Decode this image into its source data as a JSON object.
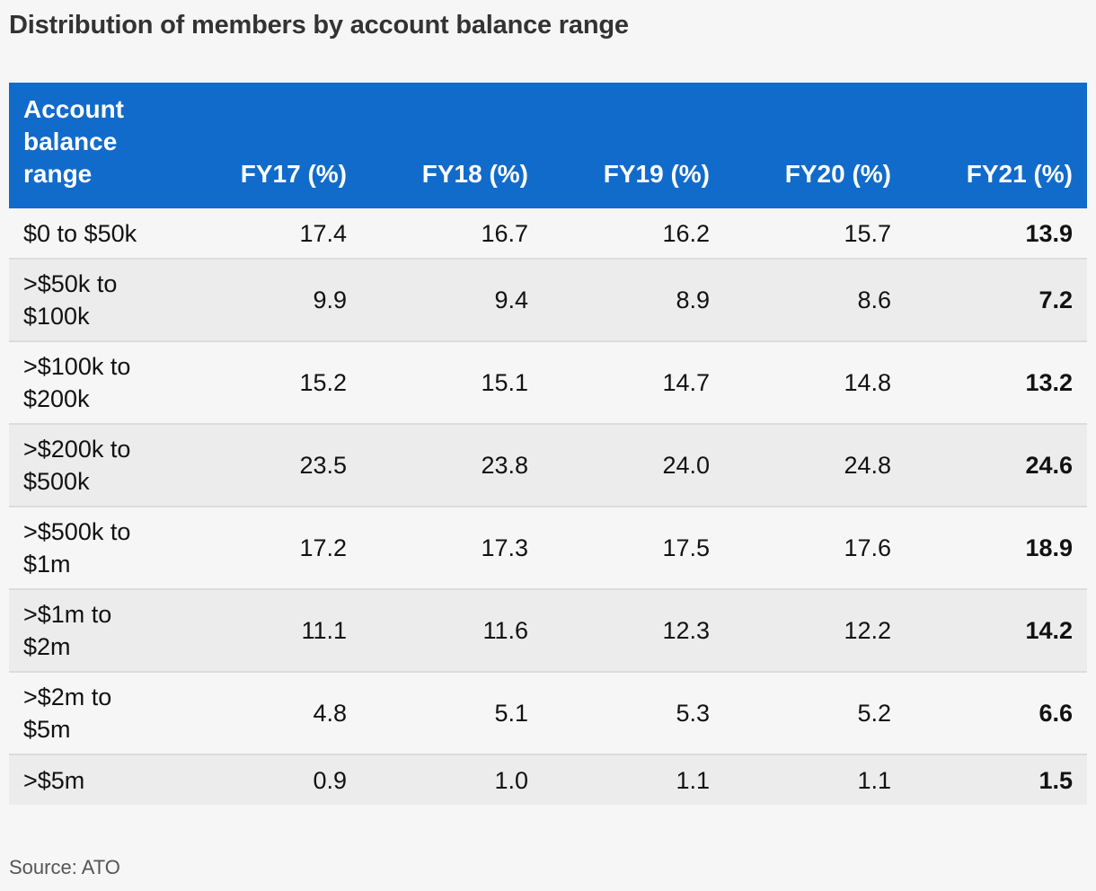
{
  "title": "Distribution of members by account balance range",
  "source": "Source: ATO",
  "colors": {
    "header_background": "#116bcb",
    "header_text": "#ffffff",
    "row_alt": "#ececec",
    "page_background": "#f6f6f6"
  },
  "chart_data": {
    "type": "table",
    "title": "Distribution of members by account balance range",
    "columns": [
      "Account balance range",
      "FY17 (%)",
      "FY18 (%)",
      "FY19 (%)",
      "FY20 (%)",
      "FY21 (%)"
    ],
    "rows": [
      {
        "label": "$0 to $50k",
        "values": [
          "17.4",
          "16.7",
          "16.2",
          "15.7",
          "13.9"
        ]
      },
      {
        "label": ">$50k to $100k",
        "values": [
          "9.9",
          "9.4",
          "8.9",
          "8.6",
          "7.2"
        ]
      },
      {
        "label": ">$100k to $200k",
        "values": [
          "15.2",
          "15.1",
          "14.7",
          "14.8",
          "13.2"
        ]
      },
      {
        "label": ">$200k to $500k",
        "values": [
          "23.5",
          "23.8",
          "24.0",
          "24.8",
          "24.6"
        ]
      },
      {
        "label": ">$500k to $1m",
        "values": [
          "17.2",
          "17.3",
          "17.5",
          "17.6",
          "18.9"
        ]
      },
      {
        "label": ">$1m to $2m",
        "values": [
          "11.1",
          "11.6",
          "12.3",
          "12.2",
          "14.2"
        ]
      },
      {
        "label": ">$2m to $5m",
        "values": [
          "4.8",
          "5.1",
          "5.3",
          "5.2",
          "6.6"
        ]
      },
      {
        "label": ">$5m",
        "values": [
          "0.9",
          "1.0",
          "1.1",
          "1.1",
          "1.5"
        ]
      }
    ],
    "source": "Source: ATO"
  }
}
